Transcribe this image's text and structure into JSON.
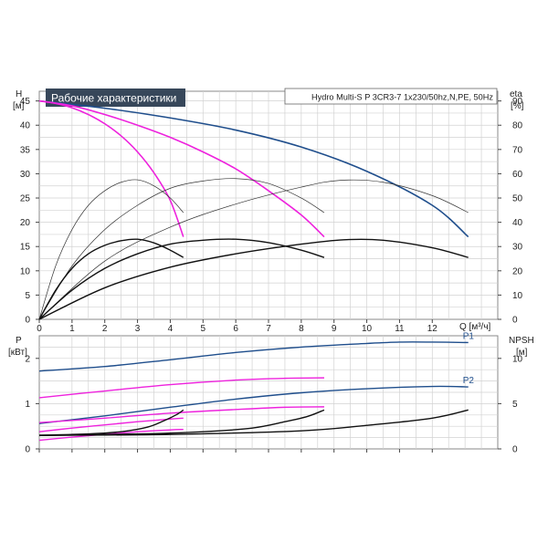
{
  "chart_data": [
    {
      "type": "line",
      "title": "Рабочие характеристики",
      "model": "Hydro Multi-S P 3CR3-7 1x230/50hz,N,PE, 50Hz",
      "left_axis": {
        "label": "H",
        "unit": "[м]",
        "ticks": [
          0,
          5,
          10,
          15,
          20,
          25,
          30,
          35,
          40,
          45
        ],
        "ylim": [
          0,
          47
        ]
      },
      "right_axis": {
        "label": "eta",
        "unit": "[%]",
        "ticks": [
          0,
          10,
          20,
          30,
          40,
          50,
          60,
          70,
          80,
          90
        ],
        "ylim": [
          0,
          94
        ]
      },
      "x_axis": {
        "label": "Q [м³/ч]",
        "ticks": [
          0,
          1,
          2,
          3,
          4,
          5,
          6,
          7,
          8,
          9,
          10,
          11,
          12
        ],
        "xlim": [
          0,
          14
        ]
      },
      "grid": true,
      "colors": {
        "blue": "#1f4e8c",
        "magenta": "#ee22dd",
        "black": "#111111",
        "thin": "#333333"
      },
      "series": [
        {
          "kind": "H",
          "color": "blue",
          "axis": "left",
          "points": [
            [
              0,
              45
            ],
            [
              2,
              43.5
            ],
            [
              4,
              41.5
            ],
            [
              6,
              39
            ],
            [
              8,
              35.5
            ],
            [
              10,
              30.5
            ],
            [
              12,
              23.5
            ],
            [
              13.1,
              17
            ]
          ]
        },
        {
          "kind": "H",
          "color": "magenta",
          "axis": "left",
          "points": [
            [
              0,
              45
            ],
            [
              1,
              44
            ],
            [
              2,
              42.2
            ],
            [
              3,
              40
            ],
            [
              4,
              37.5
            ],
            [
              5,
              34.5
            ],
            [
              6,
              31
            ],
            [
              7,
              26.5
            ],
            [
              8,
              21.5
            ],
            [
              8.7,
              17
            ]
          ]
        },
        {
          "kind": "H",
          "color": "magenta",
          "axis": "left",
          "points": [
            [
              0,
              45
            ],
            [
              0.5,
              44.5
            ],
            [
              1,
              43.6
            ],
            [
              1.5,
              42.2
            ],
            [
              2,
              40.3
            ],
            [
              2.5,
              37.8
            ],
            [
              3,
              34.5
            ],
            [
              3.5,
              30.2
            ],
            [
              4,
              24.5
            ],
            [
              4.4,
              17
            ]
          ]
        },
        {
          "kind": "eta",
          "color": "thin",
          "axis": "right",
          "points": [
            [
              0,
              0
            ],
            [
              2,
              24
            ],
            [
              4,
              38
            ],
            [
              6,
              47.5
            ],
            [
              8,
              54.5
            ],
            [
              9.2,
              57.3
            ],
            [
              10.5,
              56.5
            ],
            [
              12,
              51
            ],
            [
              13.1,
              44
            ]
          ]
        },
        {
          "kind": "eta",
          "color": "thin",
          "axis": "right",
          "points": [
            [
              0,
              0
            ],
            [
              1,
              22
            ],
            [
              2,
              37
            ],
            [
              3,
              47
            ],
            [
              4,
              54
            ],
            [
              5,
              57
            ],
            [
              6,
              58
            ],
            [
              7,
              56
            ],
            [
              8,
              50
            ],
            [
              8.7,
              44
            ]
          ]
        },
        {
          "kind": "eta",
          "color": "thin",
          "axis": "right",
          "points": [
            [
              0,
              0
            ],
            [
              0.5,
              22
            ],
            [
              1,
              37
            ],
            [
              1.5,
              47
            ],
            [
              2,
              53
            ],
            [
              2.5,
              56.5
            ],
            [
              3,
              57.5
            ],
            [
              3.5,
              55
            ],
            [
              4,
              50
            ],
            [
              4.4,
              44
            ]
          ]
        },
        {
          "kind": "eta",
          "color": "black",
          "axis": "right",
          "points": [
            [
              0,
              0
            ],
            [
              2,
              13
            ],
            [
              4,
              21.5
            ],
            [
              6,
              27
            ],
            [
              8,
              31
            ],
            [
              9.3,
              32.8
            ],
            [
              10.5,
              32.6
            ],
            [
              12,
              29.5
            ],
            [
              13.1,
              25.5
            ]
          ]
        },
        {
          "kind": "eta",
          "color": "black",
          "axis": "right",
          "points": [
            [
              0,
              0
            ],
            [
              1,
              12
            ],
            [
              2,
              21
            ],
            [
              3,
              27
            ],
            [
              4,
              31
            ],
            [
              5,
              32.6
            ],
            [
              6,
              33
            ],
            [
              7,
              31.6
            ],
            [
              8,
              28.5
            ],
            [
              8.7,
              25.5
            ]
          ]
        },
        {
          "kind": "eta",
          "color": "black",
          "axis": "right",
          "points": [
            [
              0,
              0
            ],
            [
              0.5,
              12
            ],
            [
              1,
              21
            ],
            [
              1.5,
              27
            ],
            [
              2,
              30.5
            ],
            [
              2.5,
              32.4
            ],
            [
              3,
              33
            ],
            [
              3.5,
              31.5
            ],
            [
              4,
              28.5
            ],
            [
              4.4,
              25.5
            ]
          ]
        }
      ]
    },
    {
      "type": "line",
      "left_axis": {
        "label": "P",
        "unit": "[кВт]",
        "ticks": [
          0,
          1,
          2
        ],
        "ylim": [
          0,
          2.5
        ]
      },
      "right_axis": {
        "label": "NPSH",
        "unit": "[м]",
        "ticks": [
          0,
          5,
          10
        ],
        "ylim": [
          0,
          12.5
        ]
      },
      "x_axis": {
        "xlim": [
          0,
          14
        ]
      },
      "grid": true,
      "series": [
        {
          "name": "P1",
          "color": "blue",
          "axis": "left",
          "points": [
            [
              0,
              1.72
            ],
            [
              2,
              1.82
            ],
            [
              4,
              1.97
            ],
            [
              6,
              2.13
            ],
            [
              8,
              2.25
            ],
            [
              10,
              2.33
            ],
            [
              11,
              2.36
            ],
            [
              12,
              2.36
            ],
            [
              13.1,
              2.35
            ]
          ]
        },
        {
          "name": "P2",
          "color": "blue",
          "axis": "left",
          "points": [
            [
              0,
              0.56
            ],
            [
              2,
              0.73
            ],
            [
              4,
              0.92
            ],
            [
              6,
              1.1
            ],
            [
              8,
              1.24
            ],
            [
              10,
              1.33
            ],
            [
              12,
              1.38
            ],
            [
              13.1,
              1.37
            ]
          ]
        },
        {
          "color": "magenta",
          "axis": "left",
          "points": [
            [
              0,
              1.13
            ],
            [
              2,
              1.28
            ],
            [
              4,
              1.42
            ],
            [
              6,
              1.52
            ],
            [
              7.5,
              1.56
            ],
            [
              8.7,
              1.57
            ]
          ]
        },
        {
          "color": "magenta",
          "axis": "left",
          "points": [
            [
              0,
              0.58
            ],
            [
              2,
              0.68
            ],
            [
              4,
              0.79
            ],
            [
              6,
              0.87
            ],
            [
              7.5,
              0.92
            ],
            [
              8.7,
              0.93
            ]
          ]
        },
        {
          "color": "magenta",
          "axis": "left",
          "points": [
            [
              0,
              0.38
            ],
            [
              1,
              0.46
            ],
            [
              2,
              0.53
            ],
            [
              3,
              0.6
            ],
            [
              4,
              0.66
            ],
            [
              4.4,
              0.68
            ]
          ]
        },
        {
          "color": "magenta",
          "axis": "left",
          "points": [
            [
              0,
              0.19
            ],
            [
              1,
              0.26
            ],
            [
              2,
              0.32
            ],
            [
              3,
              0.38
            ],
            [
              4,
              0.42
            ],
            [
              4.4,
              0.43
            ]
          ]
        },
        {
          "kind": "NPSH",
          "color": "black",
          "axis": "right",
          "points": [
            [
              0,
              1.5
            ],
            [
              4,
              1.6
            ],
            [
              8,
              2
            ],
            [
              10,
              2.6
            ],
            [
              12,
              3.4
            ],
            [
              13.1,
              4.3
            ]
          ]
        },
        {
          "kind": "NPSH",
          "color": "black",
          "axis": "right",
          "points": [
            [
              0,
              1.5
            ],
            [
              3,
              1.65
            ],
            [
              5,
              1.9
            ],
            [
              6.5,
              2.3
            ],
            [
              7.5,
              3
            ],
            [
              8.2,
              3.6
            ],
            [
              8.7,
              4.3
            ]
          ]
        },
        {
          "kind": "NPSH",
          "color": "black",
          "axis": "right",
          "points": [
            [
              0,
              1.5
            ],
            [
              1.5,
              1.65
            ],
            [
              2.5,
              1.9
            ],
            [
              3.3,
              2.4
            ],
            [
              3.8,
              3.1
            ],
            [
              4.2,
              3.8
            ],
            [
              4.4,
              4.3
            ]
          ]
        }
      ]
    }
  ]
}
